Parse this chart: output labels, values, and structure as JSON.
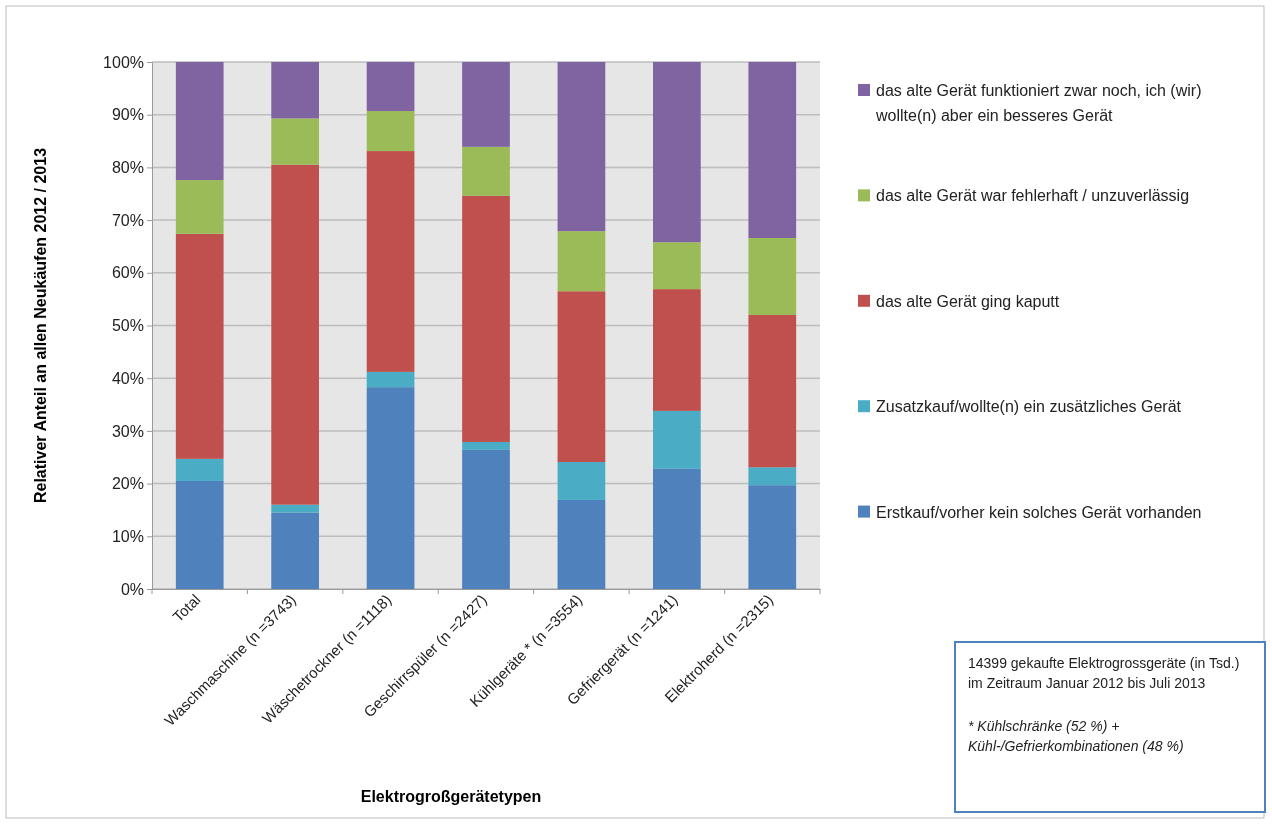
{
  "chart_data": {
    "type": "bar",
    "stacked": true,
    "ylabel": "Relativer Anteil an allen Neukäufen 2012 / 2013",
    "xlabel": "Elektrogroßgerätetypen",
    "categories": [
      "Total",
      "Waschmaschine (n =3743)",
      "Wäschetrockner (n =1118)",
      "Geschirrspüler (n =2427)",
      "Kühlgeräte * (n =3554)",
      "Gefriergerät (n =1241)",
      "Elektroherd (n =2315)"
    ],
    "series": [
      {
        "name": "Erstkauf/vorher kein solches Gerät vorhanden",
        "color": "#4f81bd",
        "values": [
          20.5,
          14.5,
          38.3,
          26.4,
          16.9,
          22.8,
          19.7
        ]
      },
      {
        "name": "Zusatzkauf/wollte(n) ein zusätzliches Gerät",
        "color": "#4bacc6",
        "values": [
          4.2,
          1.5,
          2.9,
          1.5,
          7.2,
          11,
          3.4
        ]
      },
      {
        "name": "das alte Gerät ging kaputt",
        "color": "#c0504d",
        "values": [
          42.7,
          64.5,
          41.9,
          46.7,
          32.4,
          23.1,
          28.9
        ]
      },
      {
        "name": "das alte Gerät war fehlerhaft / unzuverlässig",
        "color": "#9bbb59",
        "values": [
          10.2,
          8.8,
          7.6,
          9.3,
          11.4,
          8.9,
          14.6
        ]
      },
      {
        "name": "das alte Gerät funktioniert zwar noch, ich (wir) wollte(n) aber ein besseres Gerät",
        "color": "#8064a2",
        "values": [
          22.4,
          10.7,
          9.3,
          16.1,
          32.1,
          34.2,
          33.4
        ]
      }
    ],
    "ylim": [
      0,
      100
    ],
    "yticks": [
      {
        "value": 0,
        "label": "0%"
      },
      {
        "value": 10,
        "label": "10%"
      },
      {
        "value": 20,
        "label": "20%"
      },
      {
        "value": 30,
        "label": "30%"
      },
      {
        "value": 40,
        "label": "40%"
      },
      {
        "value": 50,
        "label": "50%"
      },
      {
        "value": 60,
        "label": "60%"
      },
      {
        "value": 70,
        "label": "70%"
      },
      {
        "value": 80,
        "label": "80%"
      },
      {
        "value": 90,
        "label": "90%"
      },
      {
        "value": 100,
        "label": "100%"
      }
    ],
    "grid": "y",
    "legend": "right",
    "annotations": [
      "14399 gekaufte Elektrogrossgeräte (in Tsd.) im Zeitraum Januar 2012 bis Juli 2013",
      "*  Kühlschränke (52 %)  + Kühl-/Gefrierkombinationen (48 %)"
    ]
  }
}
